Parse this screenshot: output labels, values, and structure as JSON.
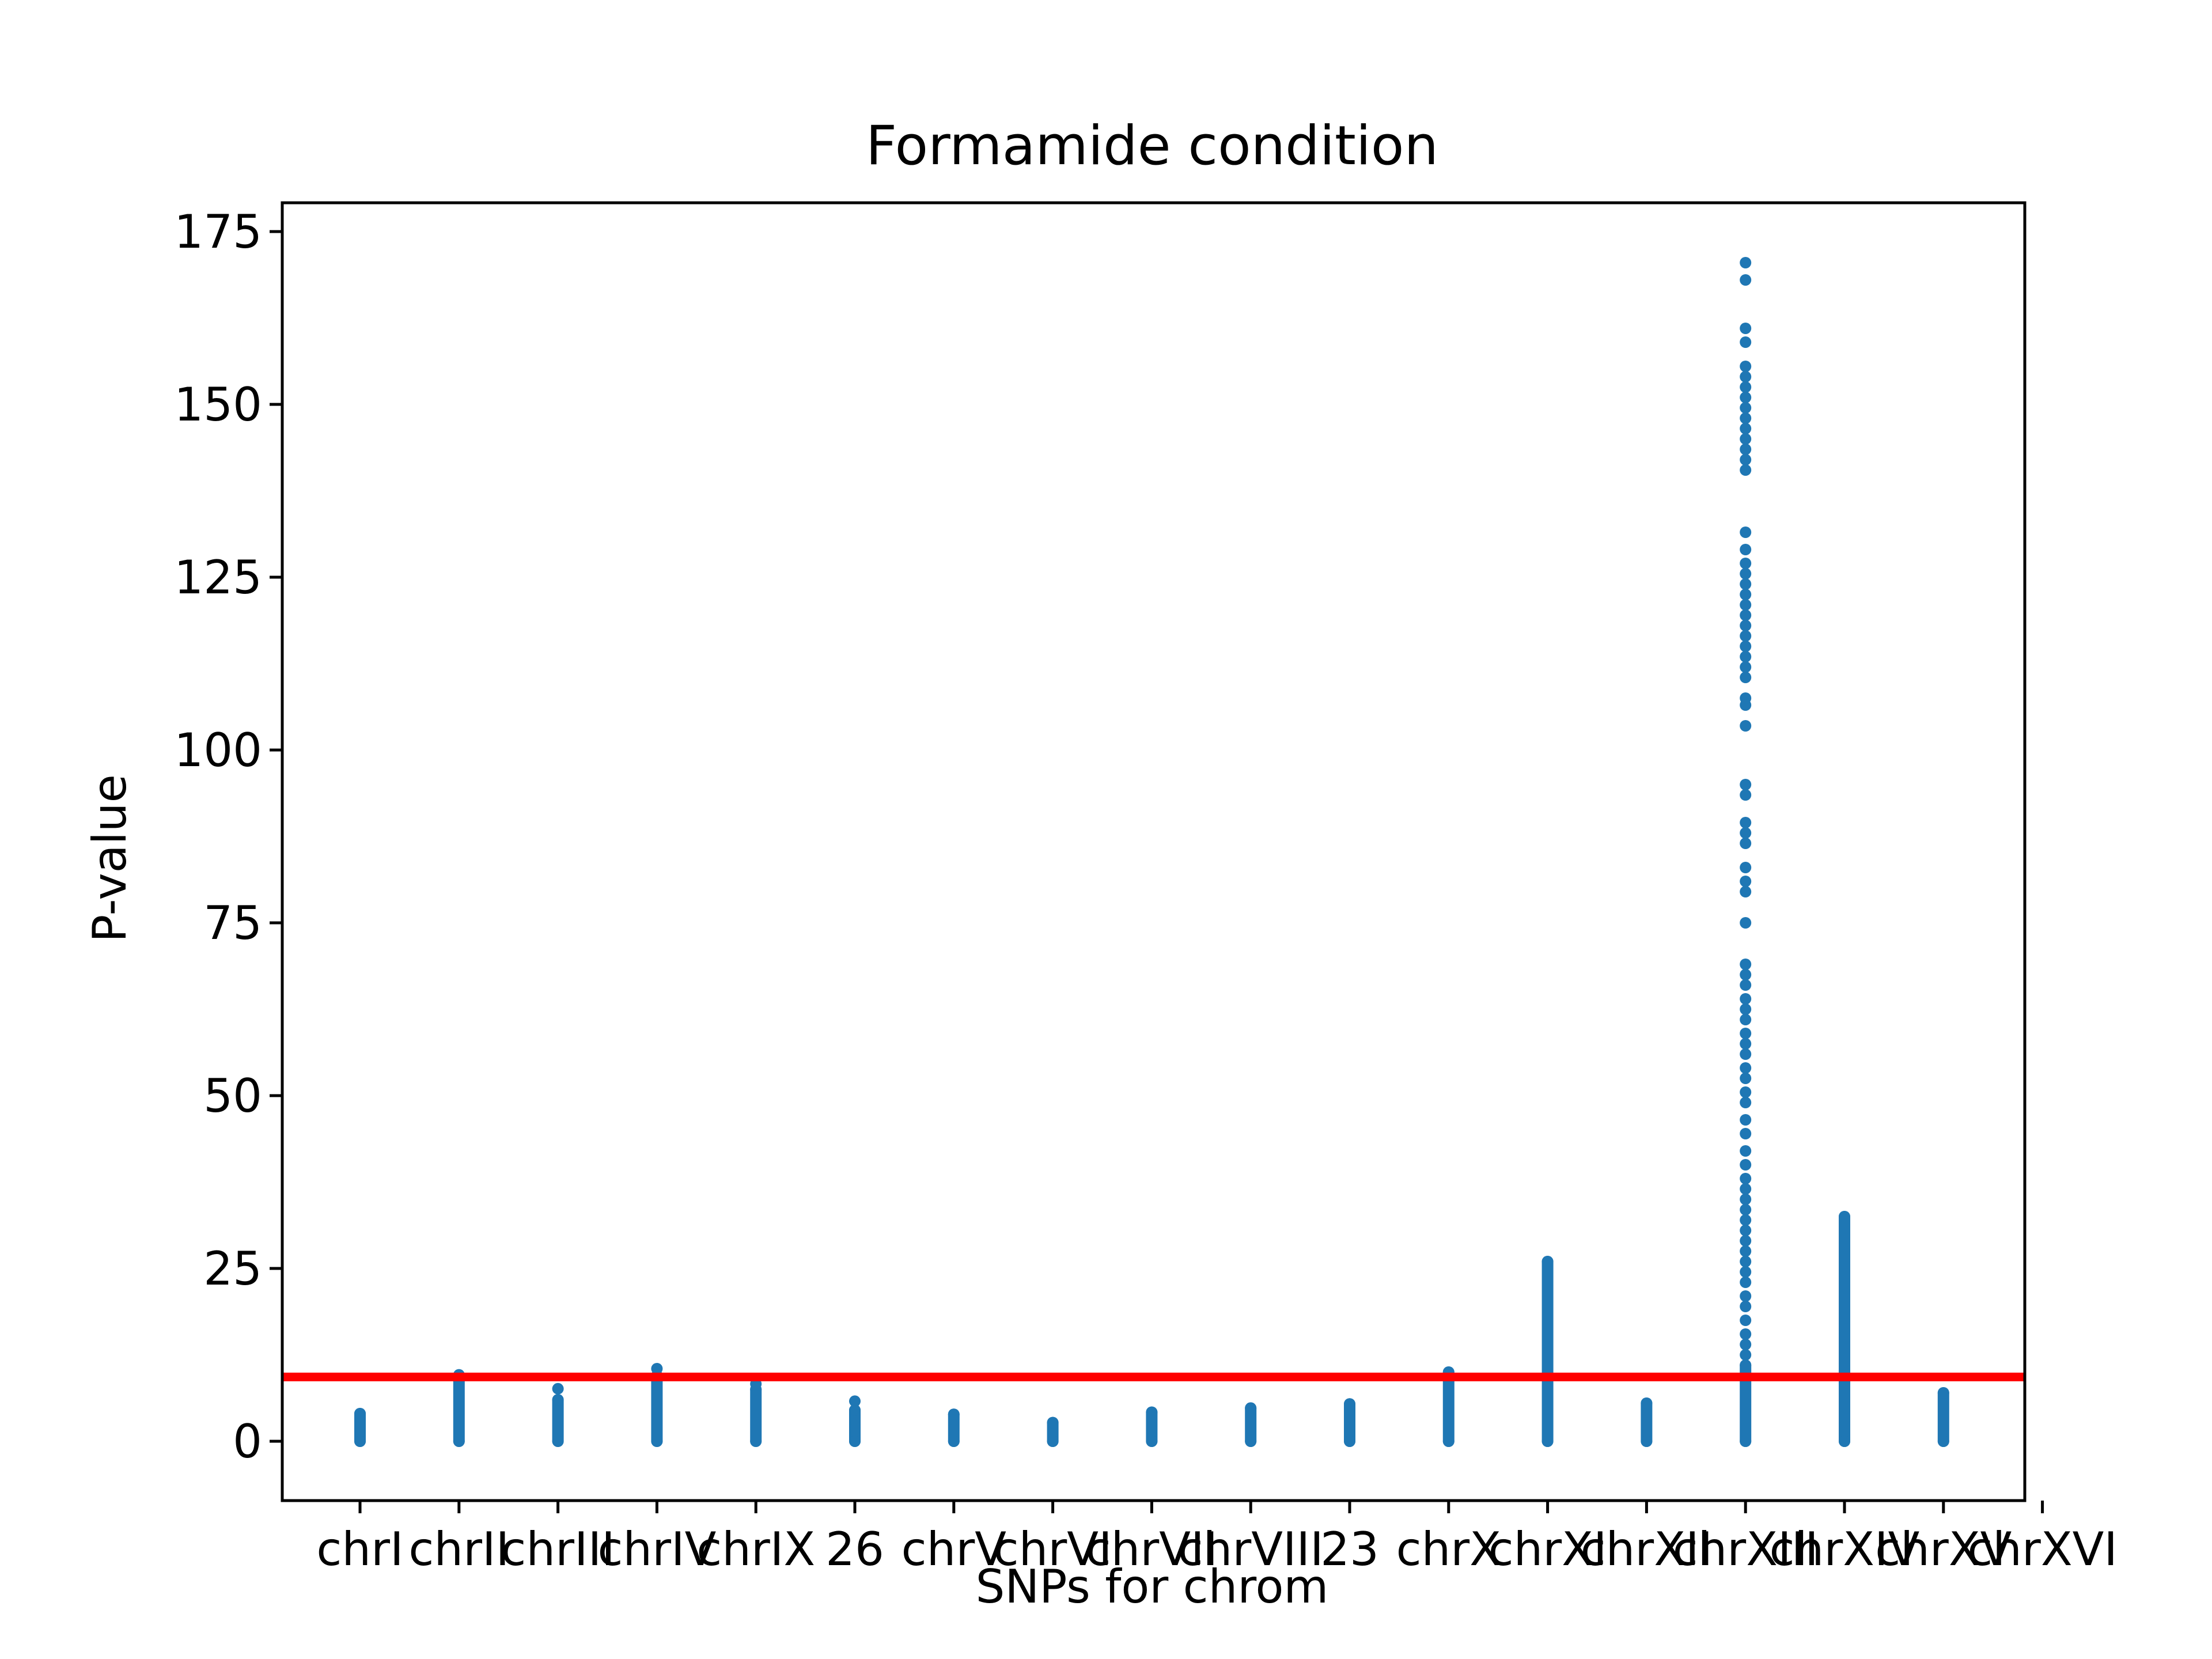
{
  "chart_data": {
    "type": "scatter",
    "title": "Formamide condition",
    "xlabel": "SNPs for chrom",
    "ylabel": "P-value",
    "ylim": [
      -8,
      178
    ],
    "yticks": [
      0,
      25,
      50,
      75,
      100,
      125,
      150,
      175
    ],
    "categories": [
      "chrI",
      "chrII",
      "chrIII",
      "chrIV",
      "chrIX",
      "26",
      "chrV",
      "chrVI",
      "chrVII",
      "chrVIII",
      "23",
      "chrX",
      "chrXI",
      "chrXII",
      "chrXIII",
      "chrXIV",
      "chrXV",
      "chrXVI"
    ],
    "threshold": 9.3,
    "colors": {
      "points": "#1f77b4",
      "threshold": "#ff0000"
    },
    "grid": false,
    "series": [
      {
        "category": "chrI",
        "max": 4.0,
        "outliers": []
      },
      {
        "category": "chrII",
        "max": 9.6,
        "outliers": []
      },
      {
        "category": "chrIII",
        "max": 6.0,
        "outliers": [
          7.6
        ]
      },
      {
        "category": "chrIV",
        "max": 9.5,
        "outliers": [
          10.5
        ]
      },
      {
        "category": "chrIX",
        "max": 7.5,
        "outliers": [
          8.3
        ]
      },
      {
        "category": "26",
        "max": 4.5,
        "outliers": [
          5.8
        ]
      },
      {
        "category": "chrV",
        "max": 3.9,
        "outliers": []
      },
      {
        "category": "chrVI",
        "max": 2.7,
        "outliers": []
      },
      {
        "category": "chrVII",
        "max": 4.2,
        "outliers": []
      },
      {
        "category": "chrVIII",
        "max": 4.8,
        "outliers": []
      },
      {
        "category": "23",
        "max": 5.4,
        "outliers": []
      },
      {
        "category": "chrX",
        "max": 10.0,
        "outliers": []
      },
      {
        "category": "chrXI",
        "max": 26.0,
        "outliers": []
      },
      {
        "category": "chrXII",
        "max": 5.5,
        "outliers": []
      },
      {
        "category": "chrXIII",
        "max": 11.0,
        "outliers": [
          12.5,
          14.0,
          15.5,
          17.5,
          19.5,
          21.0,
          23.0,
          24.5,
          26.0,
          27.5,
          29.0,
          30.5,
          32.0,
          33.5,
          35.0,
          36.5,
          38.0,
          40.0,
          42.0,
          44.5,
          46.5,
          49.0,
          50.5,
          52.5,
          54.0,
          56.0,
          57.5,
          59.0,
          61.0,
          62.5,
          64.0,
          66.0,
          67.5,
          69.0,
          75.0,
          79.5,
          81.0,
          83.0,
          86.5,
          88.0,
          89.5,
          93.5,
          95.0,
          103.5,
          106.5,
          107.5,
          110.5,
          112.0,
          113.5,
          115.0,
          116.5,
          118.0,
          119.5,
          121.0,
          122.5,
          124.0,
          125.5,
          127.0,
          129.0,
          131.5,
          140.5,
          142.0,
          143.5,
          145.0,
          146.5,
          148.0,
          149.5,
          151.0,
          152.5,
          154.0,
          155.5,
          159.0,
          161.0,
          168.0,
          170.5
        ]
      },
      {
        "category": "chrXIV",
        "max": 32.5,
        "outliers": []
      },
      {
        "category": "chrXV",
        "max": 7.0,
        "outliers": []
      }
    ]
  }
}
